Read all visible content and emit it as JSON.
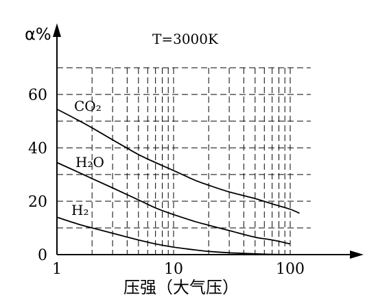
{
  "chart_data": {
    "type": "line",
    "title": "T=3000K",
    "xlabel": "压强（大气压）",
    "ylabel": "α%",
    "x_scale": "log",
    "xlim": [
      1,
      150
    ],
    "ylim": [
      0,
      70
    ],
    "x_ticks": [
      1,
      10,
      100
    ],
    "x_tick_labels": [
      "1",
      "10",
      "100"
    ],
    "y_ticks": [
      0,
      20,
      40,
      60
    ],
    "y_tick_labels": [
      "0",
      "20",
      "40",
      "60"
    ],
    "grid": true,
    "series": [
      {
        "name": "CO₂",
        "x": [
          1,
          1.5,
          2,
          3,
          5,
          7,
          10,
          15,
          20,
          30,
          50,
          70,
          100,
          120
        ],
        "y": [
          54.5,
          50.5,
          47.5,
          43,
          37.5,
          34.5,
          31.5,
          28,
          26,
          23.5,
          21,
          19,
          17,
          15.5
        ]
      },
      {
        "name": "H₂O",
        "x": [
          1,
          1.5,
          2,
          3,
          5,
          7,
          10,
          15,
          20,
          30,
          50,
          70,
          100
        ],
        "y": [
          34.5,
          31,
          28.5,
          25,
          20.5,
          17.5,
          15,
          12.5,
          11,
          9,
          6.5,
          5.5,
          4
        ]
      },
      {
        "name": "H₂",
        "x": [
          1,
          1.5,
          2,
          3,
          5,
          7,
          10,
          15,
          20,
          30,
          50,
          70,
          100
        ],
        "y": [
          14,
          11.5,
          10,
          8,
          5.5,
          4,
          2.8,
          1.8,
          1.2,
          0.7,
          0.3,
          0.1,
          0
        ]
      }
    ]
  }
}
